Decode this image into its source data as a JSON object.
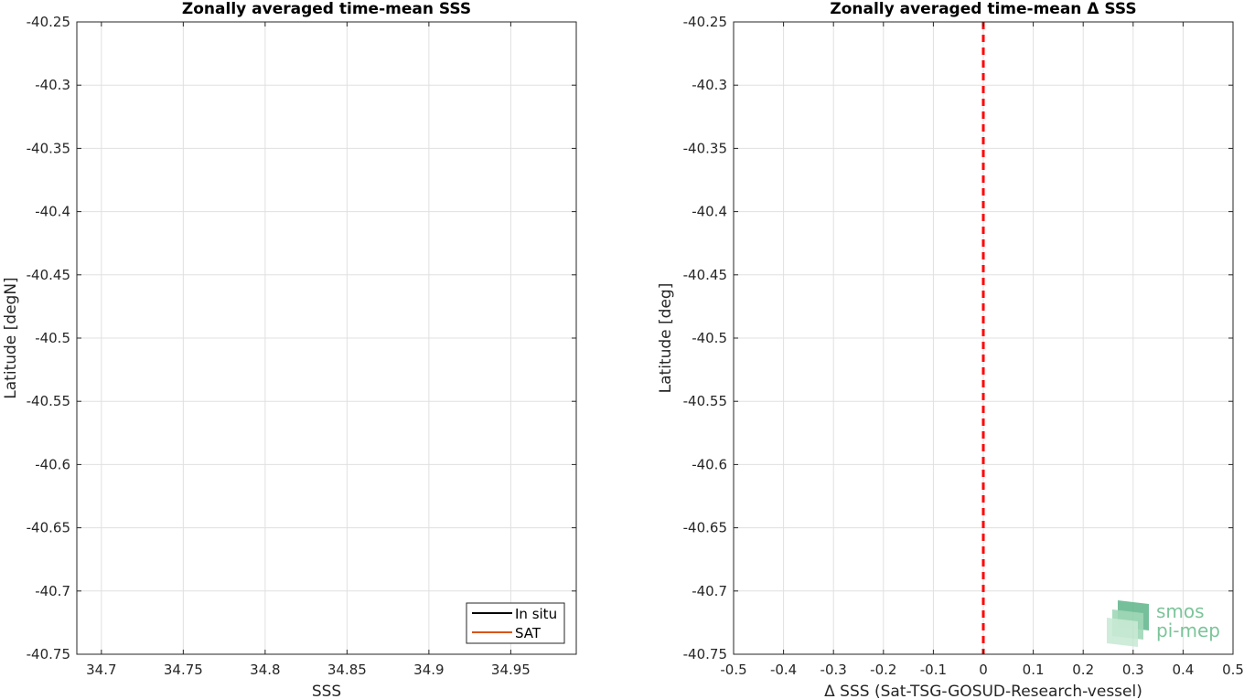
{
  "chart_data": [
    {
      "type": "line",
      "title": "Zonally averaged time-mean SSS",
      "xlabel": "SSS",
      "ylabel": "Latitude [degN]",
      "xlim": [
        34.685,
        34.99
      ],
      "ylim": [
        -40.75,
        -40.25
      ],
      "xticks": [
        34.7,
        34.75,
        34.8,
        34.85,
        34.9,
        34.95
      ],
      "xtick_labels": [
        "34.7",
        "34.75",
        "34.8",
        "34.85",
        "34.9",
        "34.95"
      ],
      "yticks": [
        -40.25,
        -40.3,
        -40.35,
        -40.4,
        -40.45,
        -40.5,
        -40.55,
        -40.6,
        -40.65,
        -40.7,
        -40.75
      ],
      "ytick_labels": [
        "-40.25",
        "-40.3",
        "-40.35",
        "-40.4",
        "-40.45",
        "-40.5",
        "-40.55",
        "-40.6",
        "-40.65",
        "-40.7",
        "-40.75"
      ],
      "grid": true,
      "legend_position": "bottom-right",
      "series": [
        {
          "name": "In situ",
          "color": "#000000",
          "x": [],
          "y": []
        },
        {
          "name": "SAT",
          "color": "#d95319",
          "x": [],
          "y": []
        }
      ]
    },
    {
      "type": "line",
      "title": "Zonally averaged time-mean Δ SSS",
      "xlabel": "Δ SSS (Sat-TSG-GOSUD-Research-vessel)",
      "ylabel": "Latitude [deg]",
      "xlim": [
        -0.5,
        0.5
      ],
      "ylim": [
        -40.75,
        -40.25
      ],
      "xticks": [
        -0.5,
        -0.4,
        -0.3,
        -0.2,
        -0.1,
        0,
        0.1,
        0.2,
        0.3,
        0.4,
        0.5
      ],
      "xtick_labels": [
        "-0.5",
        "-0.4",
        "-0.3",
        "-0.2",
        "-0.1",
        "0",
        "0.1",
        "0.2",
        "0.3",
        "0.4",
        "0.5"
      ],
      "yticks": [
        -40.25,
        -40.3,
        -40.35,
        -40.4,
        -40.45,
        -40.5,
        -40.55,
        -40.6,
        -40.65,
        -40.7,
        -40.75
      ],
      "ytick_labels": [
        "-40.25",
        "-40.3",
        "-40.35",
        "-40.4",
        "-40.45",
        "-40.5",
        "-40.55",
        "-40.6",
        "-40.65",
        "-40.7",
        "-40.75"
      ],
      "grid": true,
      "reference_line": {
        "x": 0,
        "color": "#ff0000",
        "style": "dashed"
      },
      "series": []
    }
  ],
  "logo": {
    "line1": "smos",
    "line2": "pi-mep",
    "color": "#7cc49a"
  }
}
